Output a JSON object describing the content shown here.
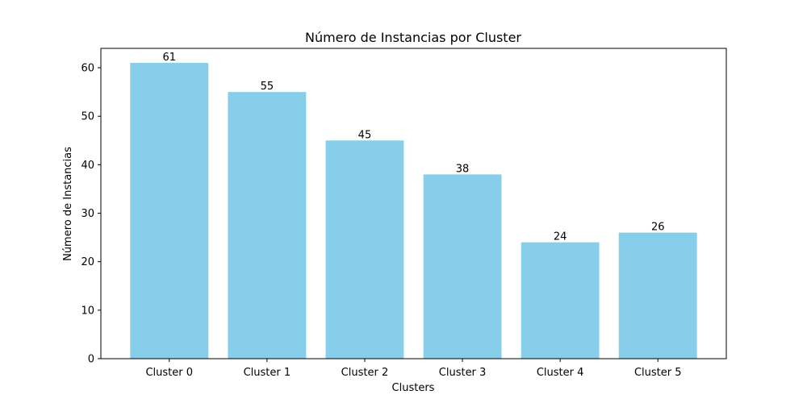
{
  "chart_data": {
    "type": "bar",
    "title": "Número de Instancias por Cluster",
    "xlabel": "Clusters",
    "ylabel": "Número de Instancias",
    "categories": [
      "Cluster 0",
      "Cluster 1",
      "Cluster 2",
      "Cluster 3",
      "Cluster 4",
      "Cluster 5"
    ],
    "values": [
      61,
      55,
      45,
      38,
      24,
      26
    ],
    "data_labels": [
      "61",
      "55",
      "45",
      "38",
      "24",
      "26"
    ],
    "ylim": [
      0,
      64
    ],
    "yticks": [
      0,
      10,
      20,
      30,
      40,
      50,
      60
    ],
    "grid": false,
    "legend": "none",
    "colors": {
      "bar": "#87CEEB",
      "axis": "#000000",
      "text": "#000000",
      "background": "#ffffff"
    }
  }
}
